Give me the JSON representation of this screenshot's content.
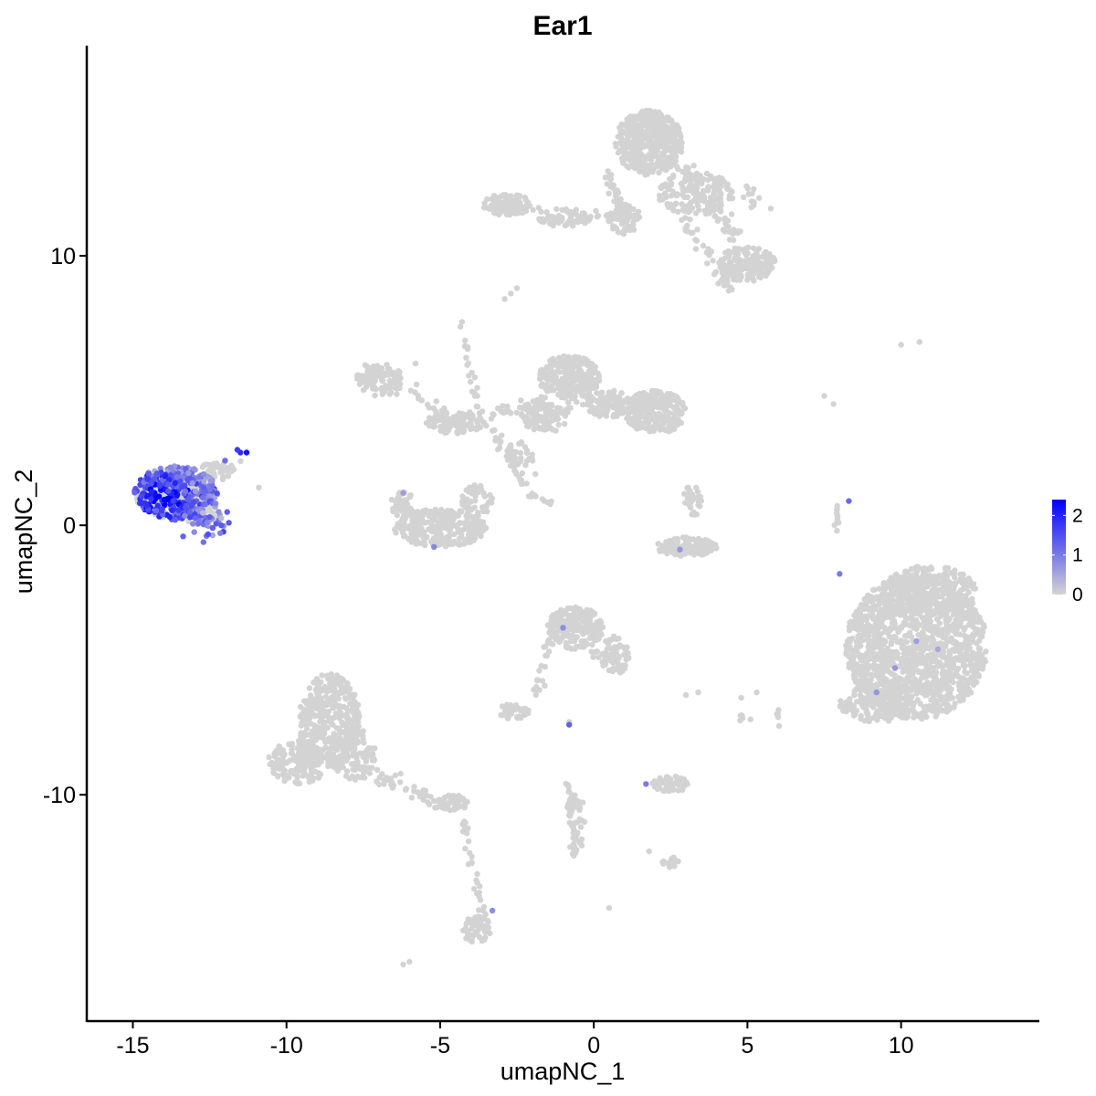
{
  "chart_data": {
    "type": "scatter",
    "title": "Ear1",
    "xlabel": "umapNC_1",
    "ylabel": "umapNC_2",
    "xlim": [
      -16.5,
      14.5
    ],
    "ylim": [
      -18.4,
      17.8
    ],
    "x_ticks": [
      -15,
      -10,
      -5,
      0,
      5,
      10
    ],
    "y_ticks": [
      -10,
      0,
      10
    ],
    "x_tick_labels": [
      "-15",
      "-10",
      "-5",
      "0",
      "5",
      "10"
    ],
    "y_tick_labels": [
      "-10",
      "0",
      "10"
    ],
    "grid": false,
    "legend": {
      "placement": "right",
      "type": "color-gradient",
      "low_color": "#d3d3d3",
      "high_color": "#0000ff",
      "range": [
        0,
        2.4
      ],
      "ticks": [
        2,
        1,
        0
      ],
      "tick_labels": [
        "2",
        "1",
        "0"
      ]
    },
    "base_color": "#d3d3d3",
    "clusters": [
      {
        "cx": 10.5,
        "cy": -4.5,
        "rx": 2.3,
        "ry": 2.7,
        "n": 1400
      },
      {
        "cx": 10.9,
        "cy": -2.5,
        "rx": 1.6,
        "ry": 1.0,
        "n": 250
      },
      {
        "cx": 9.2,
        "cy": -6.6,
        "rx": 1.2,
        "ry": 0.7,
        "n": 160
      },
      {
        "cx": 1.8,
        "cy": 14.2,
        "rx": 1.1,
        "ry": 1.2,
        "n": 450
      },
      {
        "cx": 3.3,
        "cy": 12.3,
        "rx": 1.2,
        "ry": 0.8,
        "n": 160
      },
      {
        "cx": 5.0,
        "cy": 9.7,
        "rx": 0.9,
        "ry": 0.7,
        "n": 120
      },
      {
        "cx": 1.0,
        "cy": 11.4,
        "rx": 0.5,
        "ry": 0.6,
        "n": 60
      },
      {
        "cx": -2.8,
        "cy": 11.9,
        "rx": 0.8,
        "ry": 0.4,
        "n": 100
      },
      {
        "cx": -1.0,
        "cy": 11.3,
        "rx": 0.9,
        "ry": 0.2,
        "n": 50
      },
      {
        "cx": 4.4,
        "cy": 9.2,
        "rx": 0.4,
        "ry": 0.5,
        "n": 40
      },
      {
        "cx": -0.8,
        "cy": 5.5,
        "rx": 1.0,
        "ry": 0.8,
        "n": 260
      },
      {
        "cx": 2.0,
        "cy": 4.2,
        "rx": 1.0,
        "ry": 0.8,
        "n": 240
      },
      {
        "cx": 0.5,
        "cy": 4.5,
        "rx": 0.8,
        "ry": 0.5,
        "n": 120
      },
      {
        "cx": -1.8,
        "cy": 4.1,
        "rx": 0.6,
        "ry": 0.6,
        "n": 80
      },
      {
        "cx": -7.0,
        "cy": 5.4,
        "rx": 0.8,
        "ry": 0.6,
        "n": 100
      },
      {
        "cx": -4.5,
        "cy": 3.8,
        "rx": 1.0,
        "ry": 0.4,
        "n": 80
      },
      {
        "cx": -2.4,
        "cy": 2.6,
        "rx": 0.5,
        "ry": 0.5,
        "n": 40
      },
      {
        "cx": -5.0,
        "cy": -0.1,
        "rx": 1.5,
        "ry": 0.7,
        "n": 280
      },
      {
        "cx": -3.8,
        "cy": 0.9,
        "rx": 0.5,
        "ry": 0.6,
        "n": 50
      },
      {
        "cx": -6.2,
        "cy": 0.8,
        "rx": 0.4,
        "ry": 0.5,
        "n": 40
      },
      {
        "cx": 3.0,
        "cy": -0.8,
        "rx": 1.0,
        "ry": 0.35,
        "n": 120
      },
      {
        "cx": 3.2,
        "cy": 0.9,
        "rx": 0.3,
        "ry": 0.6,
        "n": 30
      },
      {
        "cx": -0.6,
        "cy": -3.8,
        "rx": 0.9,
        "ry": 0.8,
        "n": 200
      },
      {
        "cx": 0.7,
        "cy": -4.8,
        "rx": 0.5,
        "ry": 0.7,
        "n": 50
      },
      {
        "cx": -2.6,
        "cy": -6.9,
        "rx": 0.5,
        "ry": 0.3,
        "n": 40
      },
      {
        "cx": 2.5,
        "cy": -9.6,
        "rx": 0.6,
        "ry": 0.3,
        "n": 60
      },
      {
        "cx": 2.5,
        "cy": -12.5,
        "rx": 0.3,
        "ry": 0.2,
        "n": 20
      },
      {
        "cx": -8.6,
        "cy": -7.3,
        "rx": 1.0,
        "ry": 1.8,
        "n": 380
      },
      {
        "cx": -9.6,
        "cy": -8.8,
        "rx": 1.0,
        "ry": 0.8,
        "n": 150
      },
      {
        "cx": -7.8,
        "cy": -8.5,
        "rx": 0.7,
        "ry": 1.0,
        "n": 120
      },
      {
        "cx": -4.6,
        "cy": -10.3,
        "rx": 0.5,
        "ry": 0.3,
        "n": 50
      },
      {
        "cx": -3.8,
        "cy": -15.0,
        "rx": 0.5,
        "ry": 0.5,
        "n": 60
      },
      {
        "cx": -0.6,
        "cy": -11.0,
        "rx": 0.3,
        "ry": 1.3,
        "n": 40
      },
      {
        "cx": -13.8,
        "cy": 1.1,
        "rx": 1.1,
        "ry": 0.85,
        "n": 280
      },
      {
        "cx": -12.8,
        "cy": 0.5,
        "rx": 0.6,
        "ry": 0.5,
        "n": 60
      },
      {
        "cx": -12.3,
        "cy": 2.0,
        "rx": 0.6,
        "ry": 0.35,
        "n": 40
      }
    ],
    "paths": [
      {
        "from": [
          0.5,
          13.0
        ],
        "to": [
          1.0,
          11.4
        ],
        "n": 40,
        "spread": 0.2
      },
      {
        "from": [
          1.0,
          11.4
        ],
        "to": [
          -2.8,
          11.9
        ],
        "n": 40,
        "spread": 0.15
      },
      {
        "from": [
          2.6,
          13.3
        ],
        "to": [
          5.5,
          12.0
        ],
        "n": 40,
        "spread": 0.3
      },
      {
        "from": [
          4.0,
          11.5
        ],
        "to": [
          5.5,
          9.6
        ],
        "n": 40,
        "spread": 0.3
      },
      {
        "from": [
          2.8,
          11.5
        ],
        "to": [
          4.4,
          9.0
        ],
        "n": 30,
        "spread": 0.25
      },
      {
        "from": [
          -7.5,
          6.0
        ],
        "to": [
          -4.8,
          4.0
        ],
        "n": 30,
        "spread": 0.3
      },
      {
        "from": [
          -4.6,
          3.8
        ],
        "to": [
          -1.5,
          4.6
        ],
        "n": 40,
        "spread": 0.3
      },
      {
        "from": [
          -4.3,
          7.5
        ],
        "to": [
          -3.8,
          4.3
        ],
        "n": 20,
        "spread": 0.15
      },
      {
        "from": [
          -3.8,
          4.3
        ],
        "to": [
          -2.2,
          1.2
        ],
        "n": 30,
        "spread": 0.2
      },
      {
        "from": [
          -2.2,
          1.2
        ],
        "to": [
          -1.4,
          0.8
        ],
        "n": 10,
        "spread": 0.1
      },
      {
        "from": [
          -1.5,
          3.6
        ],
        "to": [
          -0.5,
          4.8
        ],
        "n": 30,
        "spread": 0.3
      },
      {
        "from": [
          -1.4,
          -4.2
        ],
        "to": [
          -1.9,
          -6.2
        ],
        "n": 25,
        "spread": 0.15
      },
      {
        "from": [
          -0.2,
          -4.6
        ],
        "to": [
          1.1,
          -5.4
        ],
        "n": 20,
        "spread": 0.2
      },
      {
        "from": [
          -0.9,
          -9.1
        ],
        "to": [
          -0.6,
          -12.2
        ],
        "n": 25,
        "spread": 0.1
      },
      {
        "from": [
          -7.9,
          -9.0
        ],
        "to": [
          -4.5,
          -10.5
        ],
        "n": 60,
        "spread": 0.3
      },
      {
        "from": [
          -4.3,
          -10.6
        ],
        "to": [
          -3.6,
          -14.4
        ],
        "n": 30,
        "spread": 0.15
      },
      {
        "from": [
          7.9,
          0.7
        ],
        "to": [
          7.9,
          -0.4
        ],
        "n": 10,
        "spread": 0.08
      },
      {
        "from": [
          4.8,
          -6.8
        ],
        "to": [
          4.8,
          -7.5
        ],
        "n": 5,
        "spread": 0.05
      },
      {
        "from": [
          6.0,
          -6.8
        ],
        "to": [
          6.0,
          -7.5
        ],
        "n": 5,
        "spread": 0.05
      },
      {
        "from": [
          -12.5,
          1.8
        ],
        "to": [
          -11.3,
          2.5
        ],
        "n": 12,
        "spread": 0.15
      }
    ],
    "scattered": [
      {
        "x": 10.0,
        "y": 6.7
      },
      {
        "x": 10.6,
        "y": 6.8
      },
      {
        "x": 7.5,
        "y": 4.8
      },
      {
        "x": 7.8,
        "y": 4.5
      },
      {
        "x": -2.5,
        "y": 8.8
      },
      {
        "x": -2.7,
        "y": 8.6
      },
      {
        "x": -2.9,
        "y": 8.4
      },
      {
        "x": -5.8,
        "y": 6.0
      },
      {
        "x": -10.9,
        "y": 1.4
      },
      {
        "x": -6.2,
        "y": -16.3
      },
      {
        "x": -6.0,
        "y": -16.2
      },
      {
        "x": 0.5,
        "y": -14.2
      },
      {
        "x": 1.8,
        "y": -12.1
      },
      {
        "x": 5.1,
        "y": -7.2
      },
      {
        "x": 4.8,
        "y": -6.4
      },
      {
        "x": 5.3,
        "y": -6.2
      },
      {
        "x": 3.0,
        "y": -6.3
      },
      {
        "x": 3.4,
        "y": -6.2
      },
      {
        "x": -0.8,
        "y": -7.3
      },
      {
        "x": -1.9,
        "y": 1.9
      }
    ],
    "expressing_cells": [
      {
        "x": -6.2,
        "y": 1.2,
        "value": 0.6
      },
      {
        "x": -5.2,
        "y": -0.8,
        "value": 0.9
      },
      {
        "x": 2.8,
        "y": -0.9,
        "value": 0.7
      },
      {
        "x": 8.3,
        "y": 0.9,
        "value": 1.2
      },
      {
        "x": 8.0,
        "y": -1.8,
        "value": 1.0
      },
      {
        "x": -1.0,
        "y": -3.8,
        "value": 0.8
      },
      {
        "x": -0.8,
        "y": -7.4,
        "value": 1.3
      },
      {
        "x": 1.7,
        "y": -9.6,
        "value": 1.0
      },
      {
        "x": -3.3,
        "y": -14.3,
        "value": 0.8
      },
      {
        "x": 10.5,
        "y": -4.3,
        "value": 0.6
      },
      {
        "x": 9.8,
        "y": -5.3,
        "value": 0.7
      },
      {
        "x": 9.2,
        "y": -6.2,
        "value": 0.7
      },
      {
        "x": 11.2,
        "y": -4.6,
        "value": 0.5
      }
    ]
  }
}
